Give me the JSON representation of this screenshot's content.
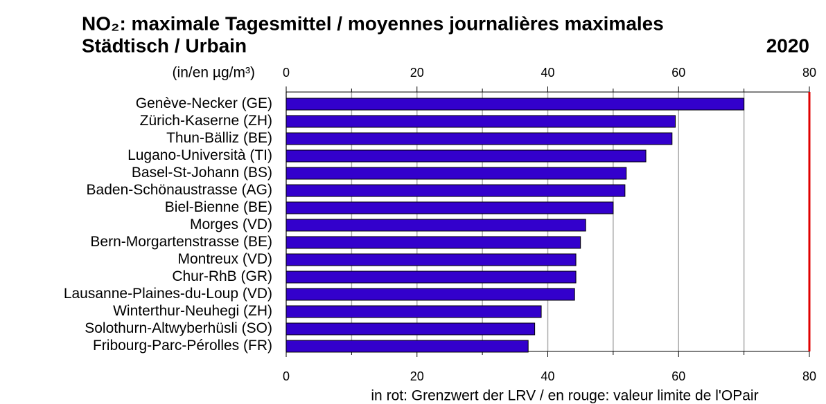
{
  "chart_data": {
    "type": "barh",
    "title": "NO₂: maximale Tagesmittel  / moyennes journalières maximales",
    "subtitle": "Städtisch / Urbain",
    "year": "2020",
    "axis_label": "(in/en µg/m³)",
    "note": "in rot: Grenzwert der LRV / en rouge: valeur limite de l'OPair",
    "categories": [
      "Genève-Necker (GE)",
      "Zürich-Kaserne (ZH)",
      "Thun-Bälliz (BE)",
      "Lugano-Università (TI)",
      "Basel-St-Johann (BS)",
      "Baden-Schönaustrasse (AG)",
      "Biel-Bienne (BE)",
      "Morges (VD)",
      "Bern-Morgartenstrasse (BE)",
      "Montreux (VD)",
      "Chur-RhB (GR)",
      "Lausanne-Plaines-du-Loup (VD)",
      "Winterthur-Neuhegi (ZH)",
      "Solothurn-Altwyberhüsli (SO)",
      "Fribourg-Parc-Pérolles (FR)"
    ],
    "values": [
      70,
      59.5,
      59,
      55,
      52,
      51.8,
      50,
      45.8,
      45,
      44.3,
      44.3,
      44.1,
      39,
      38,
      37
    ],
    "color": "#3300cc",
    "xlim": [
      0,
      80
    ],
    "xticks": [
      0,
      20,
      40,
      60,
      80
    ],
    "xminorticks": [
      10,
      30,
      50,
      70
    ],
    "grid": true,
    "limit": 80,
    "limit_color": "#e00000"
  }
}
